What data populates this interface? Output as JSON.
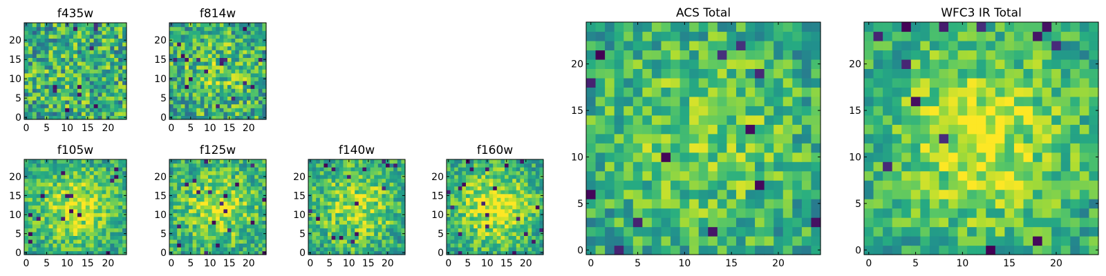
{
  "chart_data": [
    {
      "type": "heatmap",
      "title": "f435w",
      "grid_size": 25,
      "xlim": [
        0,
        25
      ],
      "ylim": [
        0,
        25
      ],
      "xticks": [
        0,
        5,
        10,
        15,
        20
      ],
      "yticks": [
        0,
        5,
        10,
        15,
        20
      ],
      "colormap": "viridis",
      "center_boost": 0.05,
      "noise": 0.3,
      "seed": 11,
      "grid": false
    },
    {
      "type": "heatmap",
      "title": "f814w",
      "grid_size": 25,
      "xlim": [
        0,
        25
      ],
      "ylim": [
        0,
        25
      ],
      "xticks": [
        0,
        5,
        10,
        15,
        20
      ],
      "yticks": [
        0,
        5,
        10,
        15,
        20
      ],
      "colormap": "viridis",
      "center_boost": 0.15,
      "noise": 0.28,
      "seed": 23,
      "grid": false
    },
    {
      "type": "heatmap",
      "title": "f105w",
      "grid_size": 25,
      "xlim": [
        0,
        25
      ],
      "ylim": [
        0,
        25
      ],
      "xticks": [
        0,
        5,
        10,
        15,
        20
      ],
      "yticks": [
        0,
        5,
        10,
        15,
        20
      ],
      "colormap": "viridis",
      "center_boost": 0.35,
      "noise": 0.2,
      "seed": 37,
      "grid": false
    },
    {
      "type": "heatmap",
      "title": "f125w",
      "grid_size": 25,
      "xlim": [
        0,
        25
      ],
      "ylim": [
        0,
        25
      ],
      "xticks": [
        0,
        5,
        10,
        15,
        20
      ],
      "yticks": [
        0,
        5,
        10,
        15,
        20
      ],
      "colormap": "viridis",
      "center_boost": 0.3,
      "noise": 0.22,
      "seed": 41,
      "grid": false
    },
    {
      "type": "heatmap",
      "title": "f140w",
      "grid_size": 25,
      "xlim": [
        0,
        25
      ],
      "ylim": [
        0,
        25
      ],
      "xticks": [
        0,
        5,
        10,
        15,
        20
      ],
      "yticks": [
        0,
        5,
        10,
        15,
        20
      ],
      "colormap": "viridis",
      "center_boost": 0.3,
      "noise": 0.22,
      "seed": 53,
      "grid": false
    },
    {
      "type": "heatmap",
      "title": "f160w",
      "grid_size": 25,
      "xlim": [
        0,
        25
      ],
      "ylim": [
        0,
        25
      ],
      "xticks": [
        0,
        5,
        10,
        15,
        20
      ],
      "yticks": [
        0,
        5,
        10,
        15,
        20
      ],
      "colormap": "viridis",
      "center_boost": 0.4,
      "noise": 0.2,
      "seed": 67,
      "grid": false
    },
    {
      "type": "heatmap",
      "title": "ACS Total",
      "grid_size": 25,
      "xlim": [
        0,
        25
      ],
      "ylim": [
        0,
        25
      ],
      "xticks": [
        0,
        5,
        10,
        15,
        20
      ],
      "yticks": [
        0,
        5,
        10,
        15,
        20
      ],
      "colormap": "viridis",
      "center_boost": 0.2,
      "noise": 0.22,
      "seed": 79,
      "grid": false
    },
    {
      "type": "heatmap",
      "title": "WFC3 IR Total",
      "grid_size": 25,
      "xlim": [
        0,
        25
      ],
      "ylim": [
        0,
        25
      ],
      "xticks": [
        0,
        5,
        10,
        15,
        20
      ],
      "yticks": [
        0,
        5,
        10,
        15,
        20
      ],
      "colormap": "viridis",
      "center_boost": 0.35,
      "noise": 0.2,
      "seed": 97,
      "grid": false
    }
  ]
}
